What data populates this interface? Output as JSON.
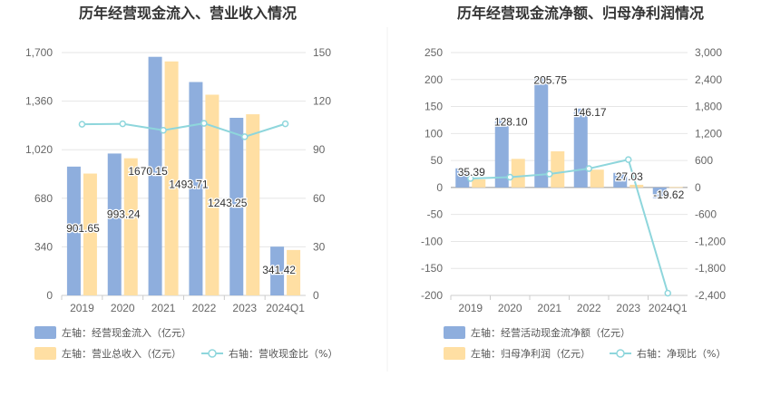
{
  "chart_data": [
    {
      "type": "bar",
      "title": "历年经营现金流入、营业收入情况",
      "categories": [
        "2019",
        "2020",
        "2021",
        "2022",
        "2023",
        "2024Q1"
      ],
      "left_axis": {
        "min": 0,
        "max": 1700,
        "ticks": [
          "0",
          "340",
          "680",
          "1,020",
          "1,360",
          "1,700"
        ]
      },
      "right_axis": {
        "min": 0,
        "max": 150,
        "ticks": [
          "0",
          "30",
          "60",
          "90",
          "120",
          "150"
        ]
      },
      "series": [
        {
          "name": "左轴：经营现金流入（亿元）",
          "axis": "left",
          "kind": "bar",
          "color": "#8EAEDD",
          "values": [
            901.65,
            993.24,
            1670.15,
            1493.71,
            1243.25,
            341.42
          ],
          "labels": [
            "901.65",
            "993.24",
            "1670.15",
            "1493.71",
            "1243.25",
            "341.42"
          ]
        },
        {
          "name": "左轴：营业总收入（亿元）",
          "axis": "left",
          "kind": "bar",
          "color": "#FFDFA3",
          "values": [
            853,
            960,
            1638,
            1405,
            1268,
            318
          ]
        },
        {
          "name": "右轴：营收现金比（%）",
          "axis": "right",
          "kind": "line",
          "color": "#8ED6DC",
          "values": [
            105.7,
            106.0,
            102.0,
            106.3,
            98.0,
            106.0
          ]
        }
      ],
      "legend": "bottom",
      "grid": true
    },
    {
      "type": "bar",
      "title": "历年经营现金流净额、归母净利润情况",
      "categories": [
        "2019",
        "2020",
        "2021",
        "2022",
        "2023",
        "2024Q1"
      ],
      "left_axis": {
        "min": -200,
        "max": 250,
        "ticks": [
          "-200",
          "-150",
          "-100",
          "-50",
          "0",
          "50",
          "100",
          "150",
          "200",
          "250"
        ]
      },
      "right_axis": {
        "min": -2400,
        "max": 3000,
        "ticks": [
          "-2,400",
          "-1,800",
          "-1,200",
          "-600",
          "0",
          "600",
          "1,200",
          "1,800",
          "2,400",
          "3,000"
        ]
      },
      "series": [
        {
          "name": "左轴：经营活动现金流净额（亿元）",
          "axis": "left",
          "kind": "bar",
          "color": "#8EAEDD",
          "values": [
            35.39,
            128.1,
            205.75,
            146.17,
            27.03,
            -19.62
          ],
          "labels": [
            "35.39",
            "128.10",
            "205.75",
            "146.17",
            "27.03",
            "-19.62"
          ]
        },
        {
          "name": "左轴：归母净利润（亿元）",
          "axis": "left",
          "kind": "bar",
          "color": "#FFDFA3",
          "values": [
            15,
            53,
            67,
            33,
            5,
            0.8
          ]
        },
        {
          "name": "右轴：净现比（%）",
          "axis": "right",
          "kind": "line",
          "color": "#8ED6DC",
          "values": [
            200,
            230,
            300,
            420,
            620,
            -2350
          ]
        }
      ],
      "legend": "bottom",
      "grid": true
    }
  ]
}
